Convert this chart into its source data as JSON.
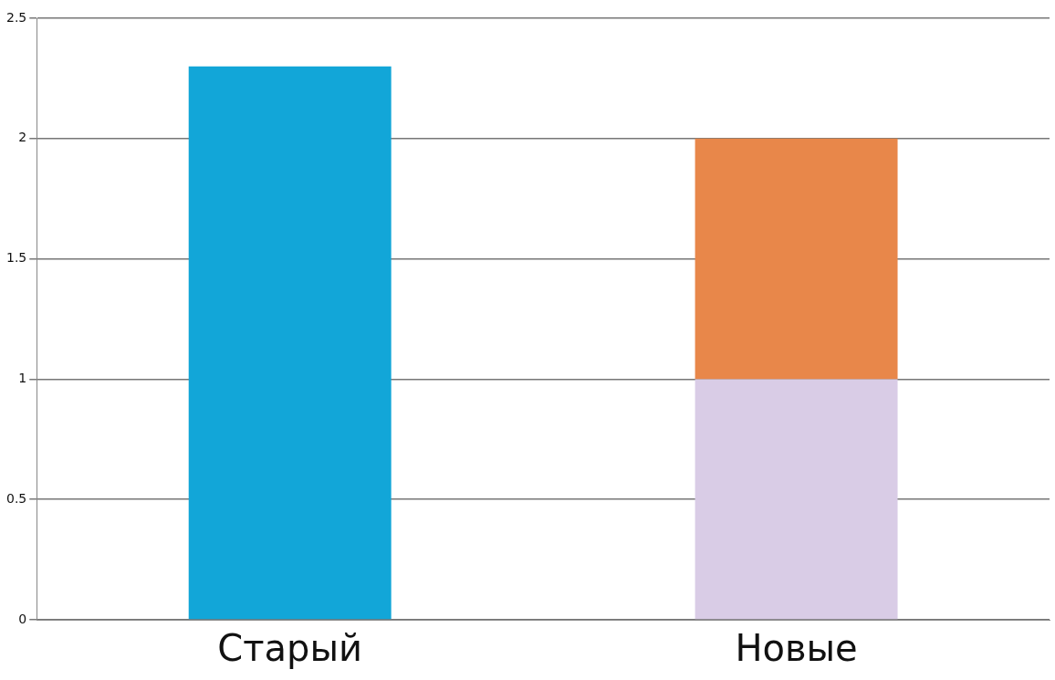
{
  "chart_data": {
    "type": "bar",
    "stacked": true,
    "categories": [
      "Старый",
      "Новые"
    ],
    "series": [
      {
        "color": "#12a6d8",
        "values": [
          2.3,
          null
        ]
      },
      {
        "color": "#d9cce6",
        "values": [
          null,
          1
        ]
      },
      {
        "color": "#e8874a",
        "values": [
          null,
          1
        ]
      }
    ],
    "ylim": [
      0,
      2.5
    ],
    "yticks": [
      0,
      0.5,
      1,
      1.5,
      2,
      2.5
    ],
    "grid": "y",
    "legend": false
  }
}
